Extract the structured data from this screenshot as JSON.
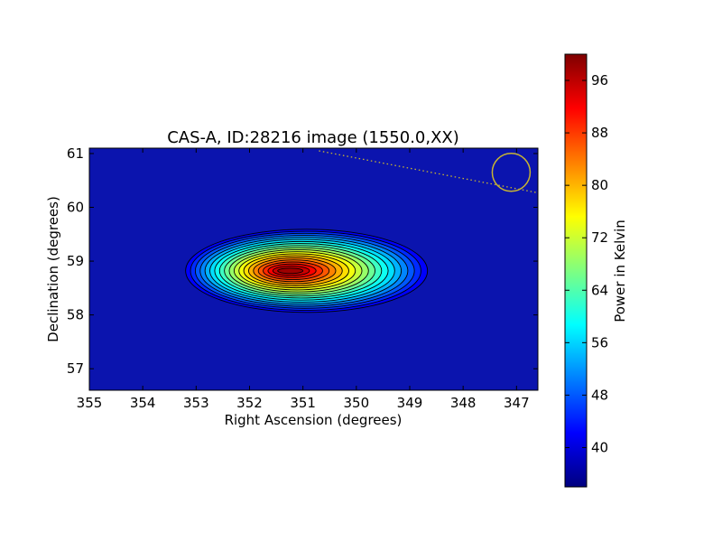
{
  "chart_data": {
    "type": "heatmap",
    "title": "CAS-A, ID:28216 image (1550.0,XX)",
    "xlabel": "Right Ascension (degrees)",
    "ylabel": "Declination (degrees)",
    "xlim": [
      355,
      346.6
    ],
    "ylim": [
      56.6,
      61.1
    ],
    "x_ticks": [
      "355",
      "354",
      "353",
      "352",
      "351",
      "350",
      "349",
      "348",
      "347"
    ],
    "y_ticks": [
      "57",
      "58",
      "59",
      "60",
      "61"
    ],
    "x_tick_values": [
      355,
      354,
      353,
      352,
      351,
      350,
      349,
      348,
      347
    ],
    "y_tick_values": [
      57,
      58,
      59,
      60,
      61
    ],
    "source": {
      "ra_peak": 351.0,
      "dec_peak": 58.82,
      "peak": 98
    },
    "colorbar": {
      "label": "Power in Kelvin",
      "min": 34,
      "max": 100,
      "ticks": [
        "40",
        "48",
        "56",
        "64",
        "72",
        "80",
        "88",
        "96"
      ],
      "tick_values": [
        40,
        48,
        56,
        64,
        72,
        80,
        88,
        96
      ],
      "colormap": "jet"
    },
    "overlay": {
      "beam_circle": {
        "ra": 347.1,
        "dec": 60.65,
        "color": "#c8b432"
      },
      "dotted_line": {
        "from": [
          350.7,
          61.05
        ],
        "to": [
          346.6,
          60.27
        ],
        "color": "#c8b432"
      }
    },
    "grid": false
  }
}
